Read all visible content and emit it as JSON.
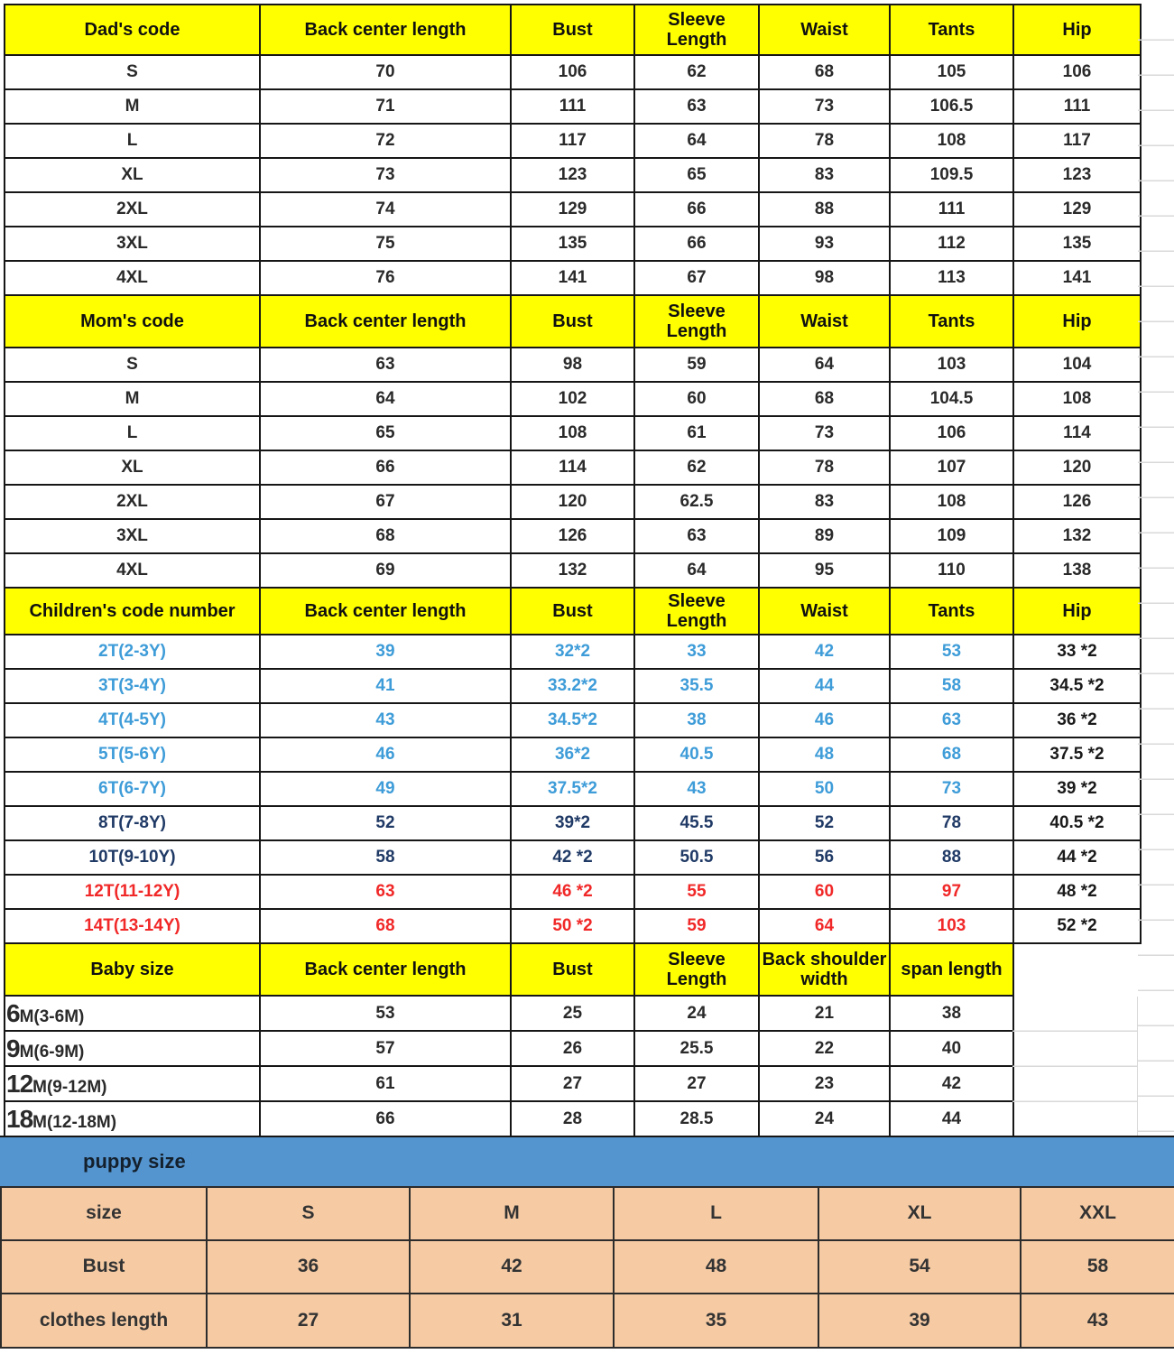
{
  "sections": {
    "dad": {
      "headers": [
        "Dad's code",
        "Back center length",
        "Bust",
        "Sleeve Length",
        "Waist",
        "Tants",
        "Hip"
      ],
      "rows": [
        {
          "code": "S",
          "back": "70",
          "bust": "106",
          "sleeve": "62",
          "waist": "68",
          "tants": "105",
          "hip": "106"
        },
        {
          "code": "M",
          "back": "71",
          "bust": "111",
          "sleeve": "63",
          "waist": "73",
          "tants": "106.5",
          "hip": "111"
        },
        {
          "code": "L",
          "back": "72",
          "bust": "117",
          "sleeve": "64",
          "waist": "78",
          "tants": "108",
          "hip": "117"
        },
        {
          "code": "XL",
          "back": "73",
          "bust": "123",
          "sleeve": "65",
          "waist": "83",
          "tants": "109.5",
          "hip": "123"
        },
        {
          "code": "2XL",
          "back": "74",
          "bust": "129",
          "sleeve": "66",
          "waist": "88",
          "tants": "111",
          "hip": "129"
        },
        {
          "code": "3XL",
          "back": "75",
          "bust": "135",
          "sleeve": "66",
          "waist": "93",
          "tants": "112",
          "hip": "135"
        },
        {
          "code": "4XL",
          "back": "76",
          "bust": "141",
          "sleeve": "67",
          "waist": "98",
          "tants": "113",
          "hip": "141"
        }
      ]
    },
    "mom": {
      "headers": [
        "Mom's code",
        "Back center length",
        "Bust",
        "Sleeve Length",
        "Waist",
        "Tants",
        "Hip"
      ],
      "rows": [
        {
          "code": "S",
          "back": "63",
          "bust": "98",
          "sleeve": "59",
          "waist": "64",
          "tants": "103",
          "hip": "104"
        },
        {
          "code": "M",
          "back": "64",
          "bust": "102",
          "sleeve": "60",
          "waist": "68",
          "tants": "104.5",
          "hip": "108"
        },
        {
          "code": "L",
          "back": "65",
          "bust": "108",
          "sleeve": "61",
          "waist": "73",
          "tants": "106",
          "hip": "114"
        },
        {
          "code": "XL",
          "back": "66",
          "bust": "114",
          "sleeve": "62",
          "waist": "78",
          "tants": "107",
          "hip": "120"
        },
        {
          "code": "2XL",
          "back": "67",
          "bust": "120",
          "sleeve": "62.5",
          "waist": "83",
          "tants": "108",
          "hip": "126"
        },
        {
          "code": "3XL",
          "back": "68",
          "bust": "126",
          "sleeve": "63",
          "waist": "89",
          "tants": "109",
          "hip": "132"
        },
        {
          "code": "4XL",
          "back": "69",
          "bust": "132",
          "sleeve": "64",
          "waist": "95",
          "tants": "110",
          "hip": "138"
        }
      ]
    },
    "children": {
      "headers": [
        "Children's code number",
        "Back center length",
        "Bust",
        "Sleeve Length",
        "Waist",
        "Tants",
        "Hip"
      ],
      "rows": [
        {
          "code": "2T(2-3Y)",
          "back": "39",
          "bust": "32*2",
          "sleeve": "33",
          "waist": "42",
          "tants": "53",
          "hip": "33 *2",
          "color": "blue"
        },
        {
          "code": "3T(3-4Y)",
          "back": "41",
          "bust": "33.2*2",
          "sleeve": "35.5",
          "waist": "44",
          "tants": "58",
          "hip": "34.5 *2",
          "color": "blue"
        },
        {
          "code": "4T(4-5Y)",
          "back": "43",
          "bust": "34.5*2",
          "sleeve": "38",
          "waist": "46",
          "tants": "63",
          "hip": "36 *2",
          "color": "blue"
        },
        {
          "code": "5T(5-6Y)",
          "back": "46",
          "bust": "36*2",
          "sleeve": "40.5",
          "waist": "48",
          "tants": "68",
          "hip": "37.5 *2",
          "color": "blue"
        },
        {
          "code": "6T(6-7Y)",
          "back": "49",
          "bust": "37.5*2",
          "sleeve": "43",
          "waist": "50",
          "tants": "73",
          "hip": "39 *2",
          "color": "blue"
        },
        {
          "code": "8T(7-8Y)",
          "back": "52",
          "bust": "39*2",
          "sleeve": "45.5",
          "waist": "52",
          "tants": "78",
          "hip": "40.5 *2",
          "color": "navy"
        },
        {
          "code": "10T(9-10Y)",
          "back": "58",
          "bust": "42 *2",
          "sleeve": "50.5",
          "waist": "56",
          "tants": "88",
          "hip": "44 *2",
          "color": "navy"
        },
        {
          "code": "12T(11-12Y)",
          "back": "63",
          "bust": "46 *2",
          "sleeve": "55",
          "waist": "60",
          "tants": "97",
          "hip": "48 *2",
          "color": "red"
        },
        {
          "code": "14T(13-14Y)",
          "back": "68",
          "bust": "50 *2",
          "sleeve": "59",
          "waist": "64",
          "tants": "103",
          "hip": "52 *2",
          "color": "red"
        }
      ]
    },
    "baby": {
      "headers": [
        "Baby size",
        "Back center length",
        "Bust",
        "Sleeve Length",
        "Back shoulder width",
        "span length"
      ],
      "rows": [
        {
          "big": "6",
          "rest": "M(3-6M)",
          "back": "53",
          "bust": "25",
          "sleeve": "24",
          "shoulder": "21",
          "span": "38"
        },
        {
          "big": "9",
          "rest": "M(6-9M)",
          "back": "57",
          "bust": "26",
          "sleeve": "25.5",
          "shoulder": "22",
          "span": "40"
        },
        {
          "big": "12",
          "rest": "M(9-12M)",
          "back": "61",
          "bust": "27",
          "sleeve": "27",
          "shoulder": "23",
          "span": "42"
        },
        {
          "big": "18",
          "rest": "M(12-18M)",
          "back": "66",
          "bust": "28",
          "sleeve": "28.5",
          "shoulder": "24",
          "span": "44"
        }
      ]
    },
    "puppy": {
      "banner": "puppy size",
      "rows": [
        {
          "label": "size",
          "s": "S",
          "m": "M",
          "l": "L",
          "xl": "XL",
          "xxl": "XXL"
        },
        {
          "label": "Bust",
          "s": "36",
          "m": "42",
          "l": "48",
          "xl": "54",
          "xxl": "58"
        },
        {
          "label": "clothes length",
          "s": "27",
          "m": "31",
          "l": "35",
          "xl": "39",
          "xxl": "43"
        }
      ]
    }
  },
  "colors": {
    "header_yellow": "#ffff00",
    "children_blue": "#3e9cd8",
    "children_navy": "#203a66",
    "children_red": "#f12828",
    "banner_blue": "#5494cf",
    "puppy_salmon": "#f6cba4",
    "grid_black": "#161616",
    "faint_gridline": "#d9d9d9"
  }
}
